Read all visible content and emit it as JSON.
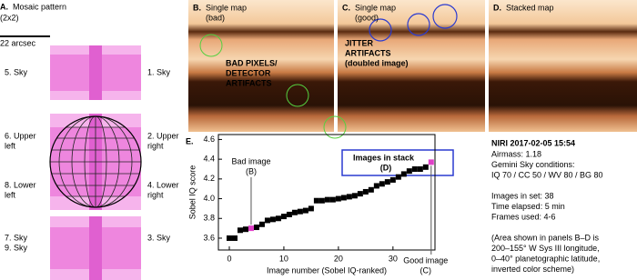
{
  "panel_a": {
    "label": "A.",
    "title": "Mosaic pattern",
    "subtitle": "(2x2)",
    "scale": "22 arcsec",
    "left_labels": [
      [
        "5. Sky"
      ],
      [
        "6. Upper",
        "left"
      ],
      [
        "8. Lower",
        "left"
      ],
      [
        "7. Sky",
        "9. Sky"
      ]
    ],
    "right_labels": [
      [
        "1. Sky"
      ],
      [
        "2. Upper",
        "right"
      ],
      [
        "4. Lower",
        "right"
      ],
      [
        "3. Sky"
      ]
    ]
  },
  "panels": [
    {
      "label": "B.",
      "title": [
        "Single map",
        "(bad)"
      ]
    },
    {
      "label": "C.",
      "title": [
        "Single map",
        "(good)"
      ]
    },
    {
      "label": "D.",
      "title": [
        "Stacked map"
      ]
    }
  ],
  "annotations": {
    "bad_pixels": [
      "BAD PIXELS/",
      "DETECTOR",
      "ARTIFACTS"
    ],
    "jitter": [
      "JITTER",
      "ARTIFACTS",
      "(doubled image)"
    ]
  },
  "chart_data": {
    "type": "scatter",
    "label": "E.",
    "xlabel": "Image number (Sobel IQ-ranked)",
    "ylabel": "Sobel IQ score",
    "xlim": [
      -2,
      37.7
    ],
    "ylim": [
      3.48,
      4.65
    ],
    "xticks": [
      0,
      10,
      20,
      30
    ],
    "yticks": [
      3.6,
      3.8,
      {
        "value": 4,
        "label": "4.0"
      },
      4.2,
      4.4,
      4.6
    ],
    "series": [
      {
        "color": "#000000",
        "x": [
          0,
          1,
          2,
          3,
          5,
          6,
          7,
          8,
          9,
          10,
          11,
          12,
          13,
          14,
          15,
          16,
          17,
          18,
          19,
          20,
          21,
          22,
          23,
          24,
          25,
          26,
          27,
          28,
          29,
          30,
          31,
          32,
          33,
          34,
          35,
          36
        ],
        "values": [
          3.6,
          3.6,
          3.68,
          3.69,
          3.71,
          3.74,
          3.78,
          3.79,
          3.8,
          3.82,
          3.84,
          3.86,
          3.87,
          3.88,
          3.9,
          3.98,
          3.98,
          3.99,
          3.99,
          4.0,
          4.01,
          4.02,
          4.03,
          4.05,
          4.07,
          4.09,
          4.13,
          4.15,
          4.17,
          4.19,
          4.22,
          4.25,
          4.28,
          4.3,
          4.3,
          4.32
        ]
      },
      {
        "color": "#e040c8",
        "x": [
          4,
          37
        ],
        "values": [
          3.7,
          4.37
        ]
      }
    ],
    "annotations": {
      "bad": [
        "Bad image",
        "(B)"
      ],
      "good": [
        "Good image",
        "(C)"
      ],
      "stack": [
        "Images in stack",
        "(D)"
      ]
    }
  },
  "info": {
    "heading": "NIRI 2017-02-05 15:54",
    "lines": [
      "Airmass: 1.18",
      "Gemini Sky conditions:",
      "IQ 70 / CC 50 / WV 80 / BG 80",
      "",
      "Images in set: 38",
      "Time elapsed: 5 min",
      "Frames used: 4-6",
      "",
      "(Area shown in panels B–D is",
      "200–155° W Sys III longitude,",
      "0–40° planetographic latitude,",
      "inverted color scheme)"
    ]
  }
}
